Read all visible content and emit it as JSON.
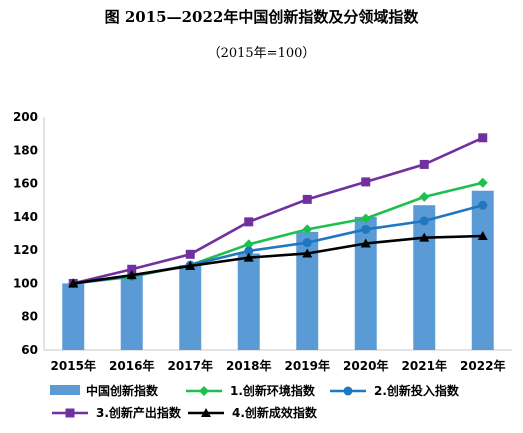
{
  "title": "图 2015—2022年中国创新指数及分领域指数",
  "subtitle": "（2015年=100）",
  "colors": {
    "bar": "#5b9bd5",
    "env": "#1fbf4f",
    "input": "#1f77c0",
    "output": "#7030a0",
    "effect": "#000000",
    "axis": "#c8c8c8"
  },
  "chart_data": {
    "type": "bar",
    "categories": [
      "2015年",
      "2016年",
      "2017年",
      "2018年",
      "2019年",
      "2020年",
      "2021年",
      "2022年"
    ],
    "ylim": [
      60,
      200
    ],
    "yticks": [
      "60",
      "80",
      "100",
      "120",
      "140",
      "160",
      "180",
      "200"
    ],
    "grid": false,
    "legend_position": "bottom",
    "bar_series": {
      "name": "中国创新指数",
      "values": [
        100,
        104.6,
        111.0,
        118.0,
        131.0,
        140.0,
        147.0,
        155.7
      ]
    },
    "series": [
      {
        "name": "1.创新环境指数",
        "marker": "diamond",
        "color_key": "env",
        "values": [
          100,
          104.0,
          111.0,
          123.5,
          132.5,
          139.0,
          152.0,
          160.5
        ]
      },
      {
        "name": "2.创新投入指数",
        "marker": "circle",
        "color_key": "input",
        "values": [
          100,
          104.5,
          111.0,
          119.5,
          124.5,
          132.5,
          137.5,
          147.0
        ]
      },
      {
        "name": "3.创新产出指数",
        "marker": "square",
        "color_key": "output",
        "values": [
          100,
          108.5,
          117.5,
          137.0,
          150.5,
          161.0,
          171.5,
          187.5
        ]
      },
      {
        "name": "4.创新成效指数",
        "marker": "triangle",
        "color_key": "effect",
        "values": [
          100,
          105.0,
          110.5,
          115.5,
          118.0,
          124.0,
          127.5,
          128.5
        ]
      }
    ]
  }
}
